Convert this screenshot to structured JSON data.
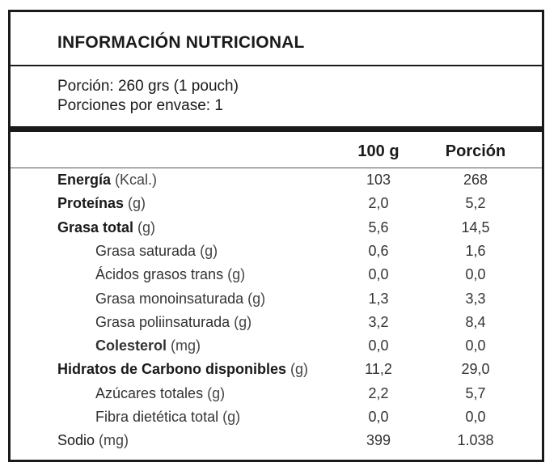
{
  "title": "INFORMACIÓN NUTRICIONAL",
  "serving": {
    "portion": "Porción: 260 grs (1 pouch)",
    "per_package": "Porciones por envase: 1"
  },
  "columns": {
    "per100": "100 g",
    "portion": "Porción"
  },
  "rows": [
    {
      "name": "Energía",
      "unit": "(Kcal.)",
      "bold": true,
      "indent": false,
      "v100": "103",
      "vpor": "268"
    },
    {
      "name": "Proteínas",
      "unit": "(g)",
      "bold": true,
      "indent": false,
      "v100": "2,0",
      "vpor": "5,2"
    },
    {
      "name": "Grasa total",
      "unit": "(g)",
      "bold": true,
      "indent": false,
      "v100": "5,6",
      "vpor": "14,5"
    },
    {
      "name": "Grasa saturada",
      "unit": "(g)",
      "bold": false,
      "indent": true,
      "v100": "0,6",
      "vpor": "1,6"
    },
    {
      "name": "Ácidos grasos trans",
      "unit": "(g)",
      "bold": false,
      "indent": true,
      "v100": "0,0",
      "vpor": "0,0"
    },
    {
      "name": "Grasa monoinsaturada",
      "unit": "(g)",
      "bold": false,
      "indent": true,
      "v100": "1,3",
      "vpor": "3,3"
    },
    {
      "name": "Grasa poliinsaturada",
      "unit": "(g)",
      "bold": false,
      "indent": true,
      "v100": "3,2",
      "vpor": "8,4"
    },
    {
      "name": "Colesterol",
      "unit": "(mg)",
      "bold": true,
      "indent": true,
      "v100": "0,0",
      "vpor": "0,0"
    },
    {
      "name": "Hidratos de Carbono disponibles",
      "unit": "(g)",
      "bold": true,
      "indent": false,
      "v100": "11,2",
      "vpor": "29,0"
    },
    {
      "name": "Azúcares totales",
      "unit": "(g)",
      "bold": false,
      "indent": true,
      "v100": "2,2",
      "vpor": "5,7"
    },
    {
      "name": "Fibra dietética total",
      "unit": "(g)",
      "bold": false,
      "indent": true,
      "v100": "0,0",
      "vpor": "0,0"
    },
    {
      "name": "Sodio",
      "unit": "(mg)",
      "bold": false,
      "indent": false,
      "v100": "399",
      "vpor": "1.038"
    }
  ]
}
